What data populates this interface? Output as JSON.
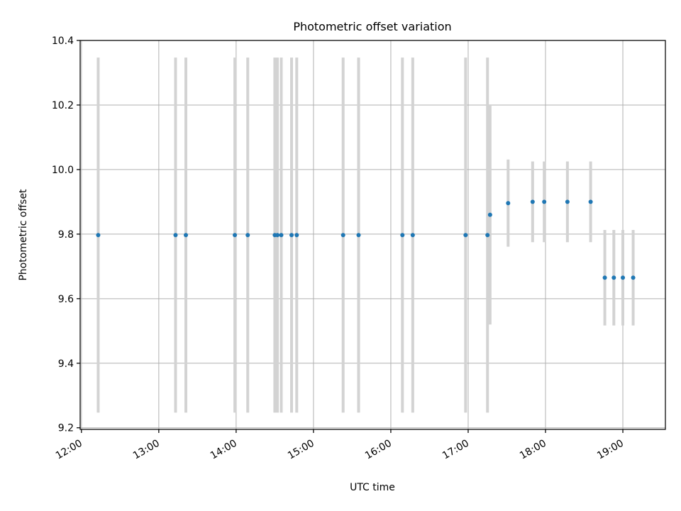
{
  "chart_data": {
    "type": "scatter",
    "title": "Photometric offset variation",
    "xlabel": "UTC time",
    "ylabel": "Photometric offset",
    "x_axis_type": "time",
    "xlim": [
      "11:59",
      "19:33"
    ],
    "ylim": [
      9.195,
      10.4
    ],
    "grid": true,
    "x_ticks": [
      "12:00",
      "13:00",
      "14:00",
      "15:00",
      "16:00",
      "17:00",
      "18:00",
      "19:00"
    ],
    "y_ticks": [
      "9.2",
      "9.4",
      "9.6",
      "9.8",
      "10.0",
      "10.2",
      "10.4"
    ],
    "y_tick_values": [
      9.2,
      9.4,
      9.6,
      9.8,
      10.0,
      10.2,
      10.4
    ],
    "colors": {
      "point": "#1f77b4",
      "errorbar": "#d3d3d3"
    },
    "points": [
      {
        "x": "12:13",
        "y": 9.797,
        "yerr": 0.55
      },
      {
        "x": "13:13",
        "y": 9.797,
        "yerr": 0.55
      },
      {
        "x": "13:21",
        "y": 9.797,
        "yerr": 0.55
      },
      {
        "x": "13:59",
        "y": 9.797,
        "yerr": 0.55
      },
      {
        "x": "14:09",
        "y": 9.797,
        "yerr": 0.55
      },
      {
        "x": "14:30",
        "y": 9.797,
        "yerr": 0.55
      },
      {
        "x": "14:32",
        "y": 9.797,
        "yerr": 0.55
      },
      {
        "x": "14:35",
        "y": 9.797,
        "yerr": 0.55
      },
      {
        "x": "14:43",
        "y": 9.797,
        "yerr": 0.55
      },
      {
        "x": "14:47",
        "y": 9.797,
        "yerr": 0.55
      },
      {
        "x": "15:23",
        "y": 9.797,
        "yerr": 0.55
      },
      {
        "x": "15:35",
        "y": 9.797,
        "yerr": 0.55
      },
      {
        "x": "16:09",
        "y": 9.797,
        "yerr": 0.55
      },
      {
        "x": "16:17",
        "y": 9.797,
        "yerr": 0.55
      },
      {
        "x": "16:58",
        "y": 9.797,
        "yerr": 0.55
      },
      {
        "x": "17:15",
        "y": 9.797,
        "yerr": 0.55
      },
      {
        "x": "17:17",
        "y": 9.86,
        "yerr": 0.34
      },
      {
        "x": "17:31",
        "y": 9.896,
        "yerr": 0.135
      },
      {
        "x": "17:50",
        "y": 9.9,
        "yerr": 0.125
      },
      {
        "x": "17:59",
        "y": 9.9,
        "yerr": 0.125
      },
      {
        "x": "18:17",
        "y": 9.9,
        "yerr": 0.125
      },
      {
        "x": "18:35",
        "y": 9.9,
        "yerr": 0.125
      },
      {
        "x": "18:46",
        "y": 9.665,
        "yerr": 0.148
      },
      {
        "x": "18:53",
        "y": 9.665,
        "yerr": 0.148
      },
      {
        "x": "19:00",
        "y": 9.665,
        "yerr": 0.148
      },
      {
        "x": "19:08",
        "y": 9.665,
        "yerr": 0.148
      }
    ]
  }
}
